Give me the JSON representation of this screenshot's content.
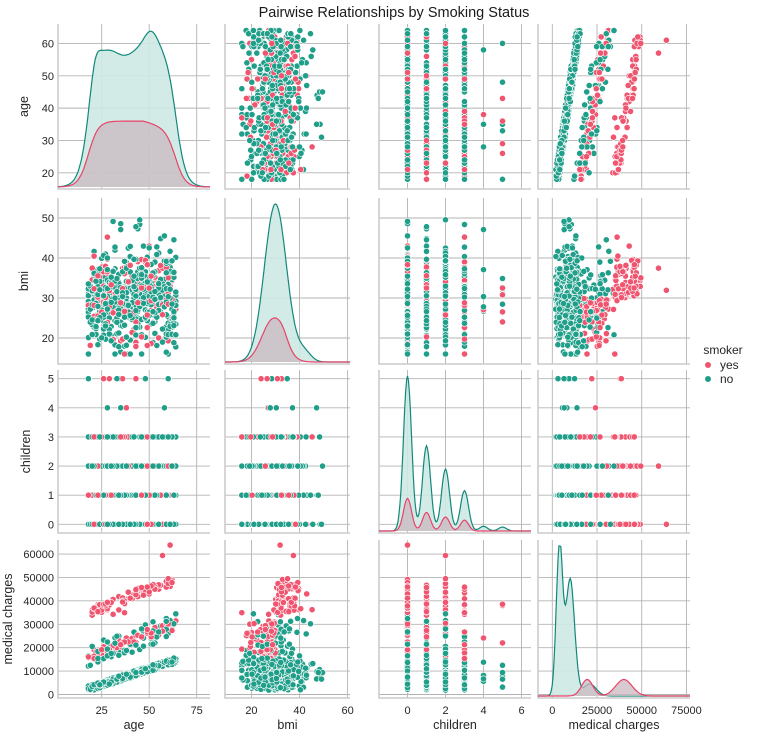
{
  "chart_data": {
    "type": "scatter",
    "kind": "pairplot",
    "title": "Pairwise Relationships by Smoking Status",
    "hue": {
      "title": "smoker",
      "levels": [
        {
          "name": "yes",
          "color": "#f0556f"
        },
        {
          "name": "no",
          "color": "#1f9e89"
        }
      ],
      "legend_position": "right"
    },
    "kde_fill_colors": {
      "yes": "#c9b8c0",
      "no": "#cde9e4"
    },
    "kde_line_colors": {
      "yes": "#e8436a",
      "no": "#12887a"
    },
    "variables": [
      {
        "name": "age",
        "label": "age",
        "lim": [
          2,
          82
        ],
        "ticks": [
          25,
          50,
          75
        ],
        "row_lim": [
          15,
          66
        ],
        "row_ticks": [
          20,
          30,
          40,
          50,
          60
        ],
        "data_range": [
          18,
          64
        ]
      },
      {
        "name": "bmi",
        "label": "bmi",
        "lim": [
          9,
          61
        ],
        "ticks": [
          20,
          40,
          60
        ],
        "row_lim": [
          13.5,
          55
        ],
        "row_ticks": [
          20,
          30,
          40,
          50
        ],
        "data_range": [
          16,
          53
        ]
      },
      {
        "name": "children",
        "label": "children",
        "lim": [
          -1.5,
          6.5
        ],
        "ticks": [
          0,
          2,
          4,
          6
        ],
        "row_lim": [
          -0.3,
          5.3
        ],
        "row_ticks": [
          0,
          1,
          2,
          3,
          4,
          5
        ],
        "data_range": [
          0,
          5
        ]
      },
      {
        "name": "medical_charges",
        "label": "medical charges",
        "lim": [
          -8000,
          77000
        ],
        "ticks": [
          0,
          25000,
          50000,
          75000
        ],
        "row_lim": [
          -1500,
          66000
        ],
        "row_ticks": [
          0,
          10000,
          20000,
          30000,
          40000,
          50000,
          60000
        ],
        "data_range": [
          1100,
          63800
        ]
      }
    ],
    "diagonal": "kde",
    "off_diagonal": "scatter",
    "kde_shapes": {
      "age": {
        "no": {
          "peaks": [
            [
              21,
              0.95
            ],
            [
              51,
              0.92
            ]
          ],
          "trough": [
            37,
            0.84
          ]
        },
        "yes": {
          "peaks": [
            [
              22,
              0.42
            ],
            [
              44,
              0.42
            ]
          ]
        }
      },
      "bmi": {
        "no": {
          "peaks": [
            [
              30,
              1.0
            ]
          ]
        },
        "yes": {
          "peaks": [
            [
              29,
              0.27
            ]
          ]
        }
      },
      "children": {
        "no": {
          "peaks": [
            [
              0,
              1.0
            ],
            [
              1,
              0.55
            ],
            [
              2,
              0.4
            ],
            [
              3,
              0.26
            ],
            [
              4,
              0.03
            ],
            [
              5,
              0.025
            ]
          ]
        },
        "yes": {
          "peaks": [
            [
              0,
              0.21
            ],
            [
              1,
              0.12
            ],
            [
              2,
              0.09
            ],
            [
              3,
              0.07
            ]
          ]
        }
      },
      "medical_charges": {
        "no": {
          "peaks": [
            [
              5000,
              1.0
            ],
            [
              20000,
              0.08
            ]
          ]
        },
        "yes": {
          "peaks": [
            [
              20000,
              0.11
            ],
            [
              40000,
              0.11
            ]
          ]
        }
      }
    },
    "approx_counts": {
      "no": 1064,
      "yes": 274
    }
  }
}
